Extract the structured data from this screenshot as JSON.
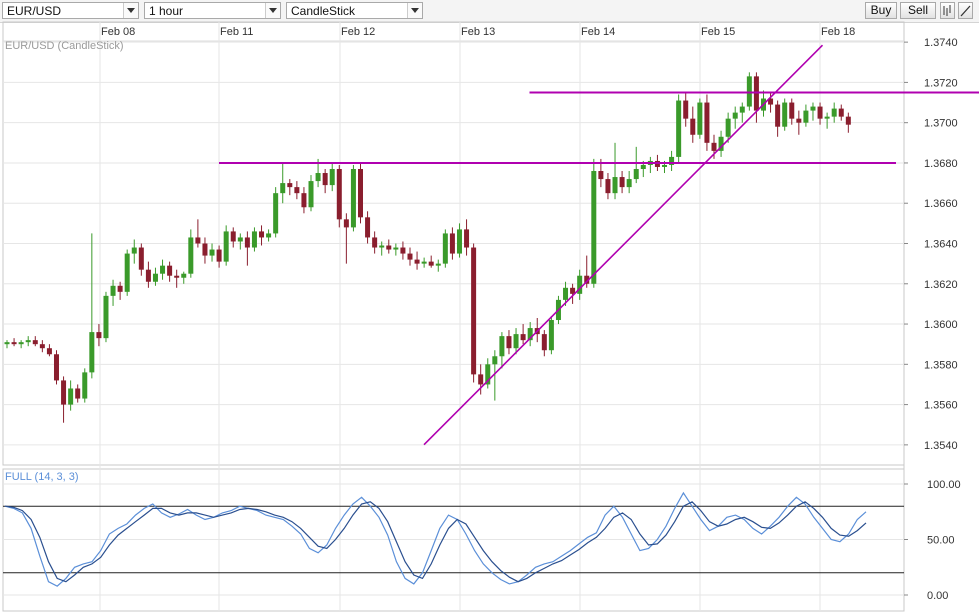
{
  "toolbar": {
    "symbol": "EUR/USD",
    "timeframe": "1 hour",
    "chart_type": "CandleStick",
    "buy_label": "Buy",
    "sell_label": "Sell",
    "icons": [
      "bars-icon",
      "draw-line-icon"
    ]
  },
  "colors": {
    "up": "#3a9a2a",
    "down": "#8a1e2e",
    "annotation": "#b000b0",
    "stoch_k": "#5b8fd8",
    "stoch_d": "#2a4f8f",
    "grid": "#e6e6e6"
  },
  "chart_data": [
    {
      "type": "candlestick",
      "title": "EUR/USD (CandleStick)",
      "x_ticks": [
        "Feb 08",
        "Feb 11",
        "Feb 12",
        "Feb 13",
        "Feb 14",
        "Feb 15",
        "Feb 18"
      ],
      "y_ticks": [
        "1.3540",
        "1.3560",
        "1.3580",
        "1.3600",
        "1.3620",
        "1.3640",
        "1.3660",
        "1.3680",
        "1.3700",
        "1.3720",
        "1.3740"
      ],
      "ylim": [
        1.353,
        1.375
      ],
      "n_bars": 120,
      "candles": [
        [
          1.359,
          1.3592,
          1.3588,
          1.3591
        ],
        [
          1.3591,
          1.3593,
          1.3589,
          1.359
        ],
        [
          1.359,
          1.3592,
          1.3588,
          1.3591
        ],
        [
          1.3591,
          1.3594,
          1.3589,
          1.3592
        ],
        [
          1.3592,
          1.3594,
          1.3589,
          1.359
        ],
        [
          1.359,
          1.3592,
          1.3586,
          1.3588
        ],
        [
          1.3588,
          1.359,
          1.3584,
          1.3585
        ],
        [
          1.3585,
          1.3587,
          1.357,
          1.3572
        ],
        [
          1.3572,
          1.3574,
          1.3551,
          1.356
        ],
        [
          1.356,
          1.3572,
          1.3557,
          1.3568
        ],
        [
          1.3568,
          1.357,
          1.3561,
          1.3563
        ],
        [
          1.3563,
          1.3578,
          1.3561,
          1.3576
        ],
        [
          1.3576,
          1.3645,
          1.3573,
          1.3596
        ],
        [
          1.3596,
          1.36,
          1.3589,
          1.3593
        ],
        [
          1.3593,
          1.3616,
          1.3591,
          1.3614
        ],
        [
          1.3614,
          1.3622,
          1.3609,
          1.3619
        ],
        [
          1.3619,
          1.3621,
          1.3612,
          1.3616
        ],
        [
          1.3616,
          1.3637,
          1.3614,
          1.3635
        ],
        [
          1.3635,
          1.3642,
          1.363,
          1.3638
        ],
        [
          1.3638,
          1.364,
          1.3624,
          1.3627
        ],
        [
          1.3627,
          1.3631,
          1.3618,
          1.3621
        ],
        [
          1.3621,
          1.3628,
          1.3619,
          1.3625
        ],
        [
          1.3625,
          1.3632,
          1.3622,
          1.3629
        ],
        [
          1.3629,
          1.3631,
          1.3621,
          1.3624
        ],
        [
          1.3624,
          1.3627,
          1.3618,
          1.3623
        ],
        [
          1.3623,
          1.3626,
          1.362,
          1.3625
        ],
        [
          1.3625,
          1.3647,
          1.3623,
          1.3643
        ],
        [
          1.3643,
          1.3652,
          1.3638,
          1.364
        ],
        [
          1.364,
          1.3643,
          1.363,
          1.3634
        ],
        [
          1.3634,
          1.364,
          1.3631,
          1.3637
        ],
        [
          1.3637,
          1.3639,
          1.3628,
          1.3631
        ],
        [
          1.3631,
          1.3649,
          1.3629,
          1.3646
        ],
        [
          1.3646,
          1.3648,
          1.3638,
          1.3641
        ],
        [
          1.3641,
          1.3645,
          1.3637,
          1.3643
        ],
        [
          1.3643,
          1.3646,
          1.3629,
          1.3638
        ],
        [
          1.3638,
          1.3648,
          1.3636,
          1.3646
        ],
        [
          1.3646,
          1.3649,
          1.3639,
          1.3643
        ],
        [
          1.3643,
          1.3647,
          1.3641,
          1.3645
        ],
        [
          1.3645,
          1.3668,
          1.3643,
          1.3665
        ],
        [
          1.3665,
          1.368,
          1.366,
          1.367
        ],
        [
          1.367,
          1.3672,
          1.3664,
          1.3668
        ],
        [
          1.3668,
          1.3671,
          1.3662,
          1.3665
        ],
        [
          1.3665,
          1.3668,
          1.3655,
          1.3658
        ],
        [
          1.3658,
          1.3674,
          1.3656,
          1.3671
        ],
        [
          1.3671,
          1.3682,
          1.3668,
          1.3675
        ],
        [
          1.3675,
          1.3677,
          1.3665,
          1.3669
        ],
        [
          1.3669,
          1.368,
          1.3666,
          1.3677
        ],
        [
          1.3677,
          1.3679,
          1.3648,
          1.3652
        ],
        [
          1.3652,
          1.3655,
          1.363,
          1.3648
        ],
        [
          1.3648,
          1.3679,
          1.3646,
          1.3677
        ],
        [
          1.3677,
          1.368,
          1.365,
          1.3653
        ],
        [
          1.3653,
          1.3656,
          1.364,
          1.3643
        ],
        [
          1.3643,
          1.3646,
          1.3635,
          1.3638
        ],
        [
          1.3638,
          1.3641,
          1.3634,
          1.3639
        ],
        [
          1.3639,
          1.3642,
          1.3635,
          1.3637
        ],
        [
          1.3637,
          1.364,
          1.3634,
          1.3638
        ],
        [
          1.3638,
          1.3641,
          1.3632,
          1.3635
        ],
        [
          1.3635,
          1.3638,
          1.3629,
          1.3632
        ],
        [
          1.3632,
          1.3636,
          1.3627,
          1.363
        ],
        [
          1.363,
          1.3633,
          1.3628,
          1.3631
        ],
        [
          1.3631,
          1.3634,
          1.3628,
          1.3629
        ],
        [
          1.3629,
          1.3632,
          1.3626,
          1.363
        ],
        [
          1.363,
          1.3647,
          1.3628,
          1.3645
        ],
        [
          1.3645,
          1.3648,
          1.3632,
          1.3635
        ],
        [
          1.3635,
          1.365,
          1.3633,
          1.3647
        ],
        [
          1.3647,
          1.3652,
          1.3634,
          1.3638
        ],
        [
          1.3638,
          1.364,
          1.3571,
          1.3575
        ],
        [
          1.3575,
          1.358,
          1.3565,
          1.357
        ],
        [
          1.357,
          1.3583,
          1.3568,
          1.358
        ],
        [
          1.358,
          1.3587,
          1.3562,
          1.3584
        ],
        [
          1.3584,
          1.3596,
          1.3578,
          1.3594
        ],
        [
          1.3594,
          1.3597,
          1.3585,
          1.3588
        ],
        [
          1.3588,
          1.3598,
          1.3585,
          1.3595
        ],
        [
          1.3595,
          1.36,
          1.359,
          1.3592
        ],
        [
          1.3592,
          1.3601,
          1.3589,
          1.3598
        ],
        [
          1.3598,
          1.3603,
          1.3591,
          1.3595
        ],
        [
          1.3595,
          1.3597,
          1.3584,
          1.3587
        ],
        [
          1.3587,
          1.3604,
          1.3585,
          1.3602
        ],
        [
          1.3602,
          1.3614,
          1.36,
          1.3612
        ],
        [
          1.3612,
          1.3621,
          1.3609,
          1.3618
        ],
        [
          1.3618,
          1.362,
          1.361,
          1.3615
        ],
        [
          1.3615,
          1.3627,
          1.3612,
          1.3624
        ],
        [
          1.3624,
          1.3634,
          1.3618,
          1.362
        ],
        [
          1.362,
          1.3682,
          1.3618,
          1.3676
        ],
        [
          1.3676,
          1.3682,
          1.3668,
          1.3672
        ],
        [
          1.3672,
          1.3675,
          1.3662,
          1.3665
        ],
        [
          1.3665,
          1.369,
          1.3662,
          1.3673
        ],
        [
          1.3673,
          1.3676,
          1.3665,
          1.3668
        ],
        [
          1.3668,
          1.3676,
          1.3665,
          1.3672
        ],
        [
          1.3672,
          1.3688,
          1.367,
          1.3677
        ],
        [
          1.3677,
          1.3681,
          1.3673,
          1.3679
        ],
        [
          1.3679,
          1.3683,
          1.3675,
          1.3681
        ],
        [
          1.3681,
          1.3684,
          1.3676,
          1.3678
        ],
        [
          1.3678,
          1.3681,
          1.3675,
          1.3679
        ],
        [
          1.3679,
          1.3686,
          1.3676,
          1.3683
        ],
        [
          1.3683,
          1.3714,
          1.368,
          1.3711
        ],
        [
          1.3711,
          1.3715,
          1.3698,
          1.3702
        ],
        [
          1.3702,
          1.3708,
          1.369,
          1.3694
        ],
        [
          1.3694,
          1.3712,
          1.3692,
          1.371
        ],
        [
          1.371,
          1.3714,
          1.3686,
          1.369
        ],
        [
          1.369,
          1.3694,
          1.3682,
          1.3686
        ],
        [
          1.3686,
          1.3696,
          1.3683,
          1.3693
        ],
        [
          1.3693,
          1.3705,
          1.369,
          1.3702
        ],
        [
          1.3702,
          1.3708,
          1.3697,
          1.3705
        ],
        [
          1.3705,
          1.371,
          1.37,
          1.3708
        ],
        [
          1.3708,
          1.3725,
          1.3706,
          1.3723
        ],
        [
          1.3723,
          1.3725,
          1.37,
          1.3706
        ],
        [
          1.3706,
          1.3716,
          1.3703,
          1.3712
        ],
        [
          1.3712,
          1.3715,
          1.3705,
          1.3709
        ],
        [
          1.3709,
          1.3711,
          1.3693,
          1.3698
        ],
        [
          1.3698,
          1.3712,
          1.3696,
          1.371
        ],
        [
          1.371,
          1.3712,
          1.3699,
          1.3702
        ],
        [
          1.3702,
          1.3706,
          1.3694,
          1.37
        ],
        [
          1.37,
          1.3709,
          1.3698,
          1.3706
        ],
        [
          1.3706,
          1.371,
          1.3701,
          1.3708
        ],
        [
          1.3708,
          1.371,
          1.3699,
          1.3702
        ],
        [
          1.3702,
          1.3705,
          1.3697,
          1.3703
        ],
        [
          1.3703,
          1.371,
          1.37,
          1.3707
        ],
        [
          1.3707,
          1.3709,
          1.3701,
          1.3703
        ],
        [
          1.3703,
          1.3705,
          1.3695,
          1.3699
        ]
      ],
      "annotations": [
        {
          "kind": "horizontal-line",
          "y": 1.368,
          "from_bar": 54,
          "to_bar": 120
        },
        {
          "kind": "horizontal-line",
          "y": 1.3715,
          "from_bar": 123,
          "to_bar": 183
        },
        {
          "kind": "trend-line",
          "points": [
            [
              104,
              1.355
            ],
            [
              203,
              1.3733
            ]
          ]
        }
      ]
    },
    {
      "type": "line",
      "title": "FULL (14, 3, 3)",
      "y_ticks": [
        "0.00",
        "50.00",
        "100.00"
      ],
      "ylim": [
        0,
        100
      ],
      "reference_lines": [
        20,
        80
      ],
      "series": [
        {
          "role": "%K",
          "values": [
            80,
            78,
            74,
            60,
            35,
            12,
            8,
            15,
            25,
            28,
            30,
            40,
            55,
            60,
            64,
            72,
            78,
            82,
            74,
            70,
            73,
            77,
            72,
            68,
            70,
            74,
            76,
            80,
            78,
            76,
            72,
            70,
            68,
            62,
            55,
            42,
            38,
            45,
            60,
            72,
            82,
            88,
            80,
            70,
            54,
            30,
            15,
            10,
            20,
            40,
            60,
            72,
            68,
            55,
            40,
            28,
            20,
            14,
            10,
            12,
            18,
            25,
            28,
            30,
            35,
            40,
            46,
            52,
            56,
            72,
            80,
            70,
            55,
            40,
            42,
            50,
            62,
            78,
            92,
            80,
            68,
            58,
            62,
            70,
            72,
            68,
            60,
            55,
            62,
            70,
            80,
            88,
            82,
            70,
            60,
            50,
            48,
            55,
            68,
            75
          ]
        },
        {
          "role": "%D",
          "values": [
            80,
            79,
            76,
            68,
            52,
            30,
            15,
            12,
            18,
            25,
            28,
            34,
            45,
            54,
            60,
            66,
            72,
            78,
            78,
            74,
            72,
            74,
            74,
            72,
            70,
            72,
            74,
            77,
            78,
            77,
            75,
            72,
            70,
            66,
            60,
            52,
            44,
            42,
            50,
            60,
            72,
            82,
            84,
            78,
            66,
            48,
            30,
            18,
            15,
            28,
            45,
            60,
            68,
            64,
            52,
            40,
            30,
            22,
            16,
            12,
            15,
            20,
            24,
            28,
            31,
            36,
            41,
            47,
            52,
            60,
            70,
            74,
            68,
            55,
            45,
            46,
            54,
            66,
            80,
            84,
            76,
            66,
            62,
            64,
            68,
            70,
            66,
            61,
            60,
            65,
            72,
            80,
            84,
            78,
            70,
            60,
            54,
            53,
            58,
            65
          ]
        }
      ]
    }
  ]
}
